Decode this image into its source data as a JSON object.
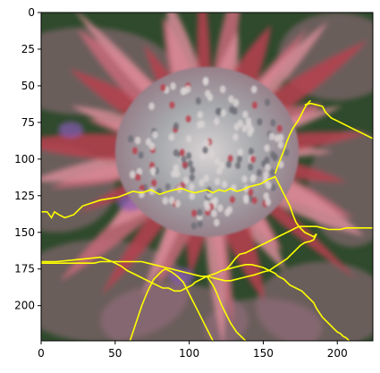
{
  "chart_data": {
    "type": "heatmap",
    "title": "",
    "xlabel": "",
    "ylabel": "",
    "xlim": [
      0,
      224
    ],
    "ylim": [
      224,
      0
    ],
    "x_ticks": [
      0,
      50,
      100,
      150,
      200
    ],
    "y_ticks": [
      0,
      25,
      50,
      75,
      100,
      125,
      150,
      175,
      200
    ],
    "image": {
      "description_kind": "photo-like heatmap of a pink/red bromeliad flower head with grey-green center",
      "palette": {
        "dark_green": "#2f4a2c",
        "leaf_mauve": "#9a6f82",
        "petal_red": "#b8414f",
        "petal_pink": "#d98c99",
        "center_grey": "#9aa0a6",
        "center_light": "#d9d3d4",
        "purple_tint": "#8a5bb8"
      }
    },
    "overlay": {
      "color": "#ffff00",
      "description": "segmentation boundary contours drawn in yellow",
      "contours": [
        [
          [
            0,
            136
          ],
          [
            4,
            136
          ],
          [
            7,
            140
          ],
          [
            9,
            136
          ],
          [
            12,
            138
          ],
          [
            16,
            140
          ],
          [
            22,
            138
          ],
          [
            28,
            132
          ],
          [
            34,
            130
          ],
          [
            40,
            128
          ],
          [
            46,
            127
          ],
          [
            52,
            126
          ],
          [
            57,
            124
          ],
          [
            62,
            122
          ],
          [
            68,
            123
          ],
          [
            74,
            121
          ],
          [
            80,
            124
          ],
          [
            86,
            122
          ],
          [
            90,
            121
          ],
          [
            95,
            120
          ],
          [
            100,
            122
          ],
          [
            104,
            123
          ],
          [
            108,
            122
          ],
          [
            112,
            121
          ],
          [
            116,
            123
          ],
          [
            120,
            121
          ],
          [
            124,
            122
          ],
          [
            128,
            120
          ],
          [
            132,
            122
          ],
          [
            136,
            121
          ],
          [
            140,
            119
          ],
          [
            144,
            118
          ],
          [
            148,
            117
          ],
          [
            150,
            116
          ],
          [
            153,
            114
          ],
          [
            156,
            113
          ],
          [
            158,
            112
          ],
          [
            164,
            124
          ],
          [
            168,
            132
          ],
          [
            170,
            138
          ],
          [
            172,
            143
          ],
          [
            174,
            146
          ],
          [
            176,
            148
          ],
          [
            178,
            150
          ],
          [
            180,
            151
          ],
          [
            182,
            152
          ],
          [
            184,
            153
          ],
          [
            186,
            151
          ],
          [
            184,
            155
          ],
          [
            182,
            156
          ],
          [
            178,
            157
          ],
          [
            175,
            159
          ],
          [
            172,
            162
          ],
          [
            169,
            165
          ],
          [
            166,
            168
          ],
          [
            163,
            170
          ],
          [
            160,
            172
          ],
          [
            157,
            174
          ],
          [
            154,
            176
          ],
          [
            150,
            177
          ],
          [
            147,
            178
          ],
          [
            144,
            179
          ],
          [
            140,
            180
          ],
          [
            136,
            181
          ],
          [
            132,
            182
          ],
          [
            128,
            183
          ],
          [
            124,
            183
          ],
          [
            120,
            182
          ],
          [
            116,
            181
          ],
          [
            112,
            180
          ],
          [
            108,
            180
          ],
          [
            104,
            179
          ],
          [
            100,
            178
          ],
          [
            96,
            177
          ],
          [
            92,
            176
          ],
          [
            88,
            175
          ],
          [
            84,
            174
          ],
          [
            80,
            173
          ],
          [
            76,
            172
          ],
          [
            72,
            171
          ],
          [
            68,
            170
          ],
          [
            64,
            170
          ],
          [
            60,
            170
          ],
          [
            56,
            170
          ],
          [
            52,
            170
          ],
          [
            48,
            170
          ],
          [
            44,
            170
          ],
          [
            40,
            170
          ],
          [
            36,
            171
          ],
          [
            32,
            171
          ],
          [
            28,
            171
          ],
          [
            24,
            171
          ],
          [
            20,
            171
          ],
          [
            16,
            171
          ],
          [
            12,
            171
          ],
          [
            8,
            171
          ],
          [
            4,
            171
          ],
          [
            0,
            171
          ]
        ],
        [
          [
            0,
            170
          ],
          [
            10,
            170
          ],
          [
            20,
            169
          ],
          [
            30,
            168
          ],
          [
            40,
            167
          ],
          [
            48,
            170
          ],
          [
            54,
            173
          ],
          [
            58,
            176
          ],
          [
            62,
            178
          ],
          [
            66,
            180
          ],
          [
            70,
            182
          ],
          [
            74,
            184
          ],
          [
            78,
            186
          ],
          [
            82,
            188
          ],
          [
            86,
            188
          ],
          [
            90,
            190
          ],
          [
            94,
            190
          ],
          [
            98,
            188
          ],
          [
            102,
            186
          ],
          [
            104,
            184
          ],
          [
            108,
            182
          ],
          [
            112,
            180
          ],
          [
            118,
            178
          ],
          [
            122,
            176
          ],
          [
            126,
            175
          ],
          [
            130,
            174
          ],
          [
            134,
            173
          ],
          [
            138,
            172
          ],
          [
            142,
            172
          ],
          [
            146,
            173
          ],
          [
            150,
            174
          ],
          [
            154,
            176
          ],
          [
            158,
            178
          ],
          [
            160,
            180
          ],
          [
            164,
            182
          ],
          [
            166,
            184
          ],
          [
            168,
            186
          ],
          [
            172,
            188
          ],
          [
            176,
            190
          ],
          [
            180,
            194
          ],
          [
            184,
            198
          ],
          [
            186,
            202
          ],
          [
            188,
            205
          ],
          [
            190,
            208
          ],
          [
            192,
            210
          ],
          [
            194,
            212
          ],
          [
            196,
            214
          ],
          [
            198,
            216
          ],
          [
            200,
            218
          ],
          [
            202,
            219
          ],
          [
            204,
            221
          ],
          [
            206,
            222
          ],
          [
            208,
            224
          ]
        ],
        [
          [
            178,
            63
          ],
          [
            182,
            62
          ],
          [
            186,
            63
          ],
          [
            190,
            64
          ],
          [
            192,
            68
          ],
          [
            196,
            72
          ],
          [
            200,
            74
          ],
          [
            204,
            76
          ],
          [
            208,
            78
          ],
          [
            212,
            80
          ],
          [
            216,
            82
          ],
          [
            220,
            84
          ],
          [
            224,
            86
          ]
        ],
        [
          [
            158,
            110
          ],
          [
            160,
            104
          ],
          [
            162,
            99
          ],
          [
            164,
            94
          ],
          [
            166,
            88
          ],
          [
            168,
            83
          ],
          [
            170,
            79
          ],
          [
            172,
            76
          ],
          [
            174,
            73
          ],
          [
            176,
            69
          ],
          [
            178,
            65
          ],
          [
            180,
            62
          ],
          [
            182,
            60
          ]
        ],
        [
          [
            124,
            176
          ],
          [
            128,
            172
          ],
          [
            131,
            168
          ],
          [
            134,
            165
          ],
          [
            138,
            164
          ],
          [
            142,
            162
          ],
          [
            146,
            160
          ],
          [
            150,
            158
          ],
          [
            154,
            156
          ],
          [
            158,
            154
          ],
          [
            162,
            152
          ],
          [
            166,
            150
          ],
          [
            170,
            148
          ],
          [
            174,
            146
          ],
          [
            178,
            146
          ],
          [
            182,
            146
          ],
          [
            186,
            146
          ],
          [
            190,
            147
          ],
          [
            194,
            148
          ],
          [
            198,
            148
          ],
          [
            202,
            148
          ],
          [
            206,
            147
          ],
          [
            210,
            147
          ],
          [
            214,
            147
          ],
          [
            218,
            147
          ],
          [
            222,
            147
          ],
          [
            224,
            147
          ]
        ],
        [
          [
            112,
            180
          ],
          [
            116,
            186
          ],
          [
            118,
            190
          ],
          [
            120,
            195
          ],
          [
            122,
            200
          ],
          [
            124,
            204
          ],
          [
            126,
            208
          ],
          [
            128,
            212
          ],
          [
            130,
            215
          ],
          [
            132,
            218
          ],
          [
            134,
            220
          ],
          [
            136,
            222
          ],
          [
            138,
            224
          ]
        ],
        [
          [
            60,
            224
          ],
          [
            62,
            218
          ],
          [
            64,
            212
          ],
          [
            66,
            206
          ],
          [
            68,
            200
          ],
          [
            70,
            195
          ],
          [
            72,
            190
          ],
          [
            74,
            186
          ],
          [
            76,
            182
          ],
          [
            78,
            180
          ],
          [
            80,
            178
          ],
          [
            82,
            176
          ],
          [
            84,
            175
          ]
        ],
        [
          [
            84,
            175
          ],
          [
            88,
            177
          ],
          [
            92,
            180
          ],
          [
            96,
            184
          ],
          [
            98,
            188
          ],
          [
            100,
            192
          ],
          [
            102,
            196
          ],
          [
            104,
            200
          ],
          [
            106,
            204
          ],
          [
            108,
            208
          ],
          [
            110,
            212
          ],
          [
            112,
            216
          ],
          [
            114,
            220
          ],
          [
            116,
            224
          ]
        ]
      ]
    }
  },
  "colors": {
    "background": "#ffffff",
    "axis": "#000000",
    "overlay": "#ffff00"
  }
}
